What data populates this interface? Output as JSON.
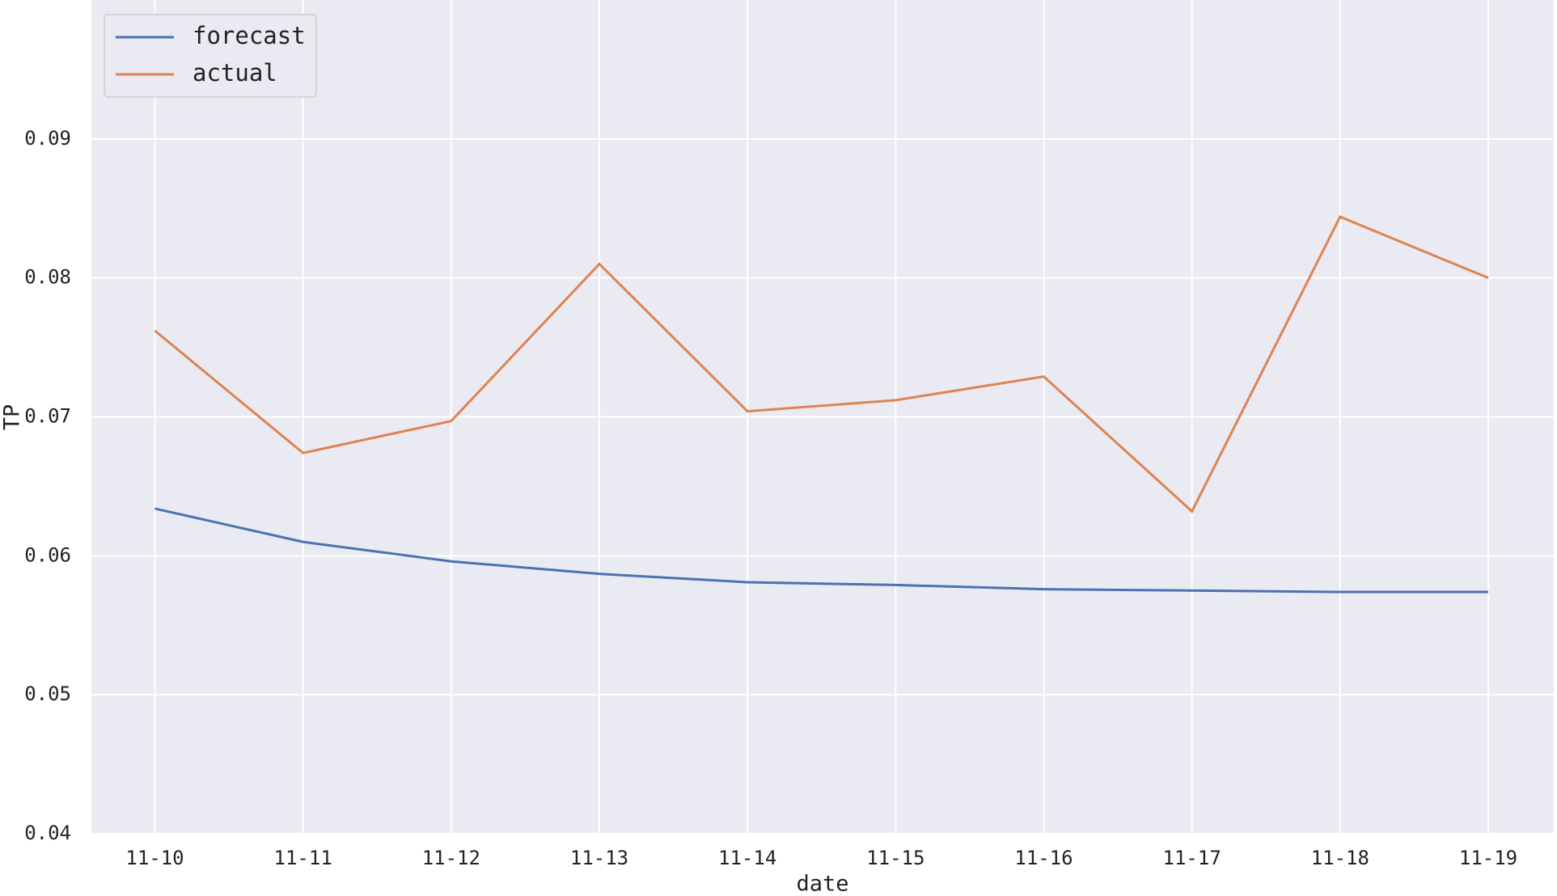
{
  "chart_data": {
    "type": "line",
    "x_label": "date",
    "y_label": "TP",
    "categories": [
      "11-10",
      "11-11",
      "11-12",
      "11-13",
      "11-14",
      "11-15",
      "11-16",
      "11-17",
      "11-18",
      "11-19"
    ],
    "series": [
      {
        "name": "forecast",
        "color": "#4c72b0",
        "values": [
          0.0634,
          0.061,
          0.0596,
          0.0587,
          0.0581,
          0.0579,
          0.0576,
          0.0575,
          0.0574,
          0.0574
        ]
      },
      {
        "name": "actual",
        "color": "#dd8452",
        "values": [
          0.0762,
          0.0674,
          0.0697,
          0.081,
          0.0704,
          0.0712,
          0.0729,
          0.0632,
          0.0844,
          0.08
        ]
      }
    ],
    "ylim": [
      0.04,
      0.1
    ],
    "yticks": [
      0.04,
      0.05,
      0.06,
      0.07,
      0.08,
      0.09
    ],
    "grid": true,
    "legend": "upper-left"
  }
}
